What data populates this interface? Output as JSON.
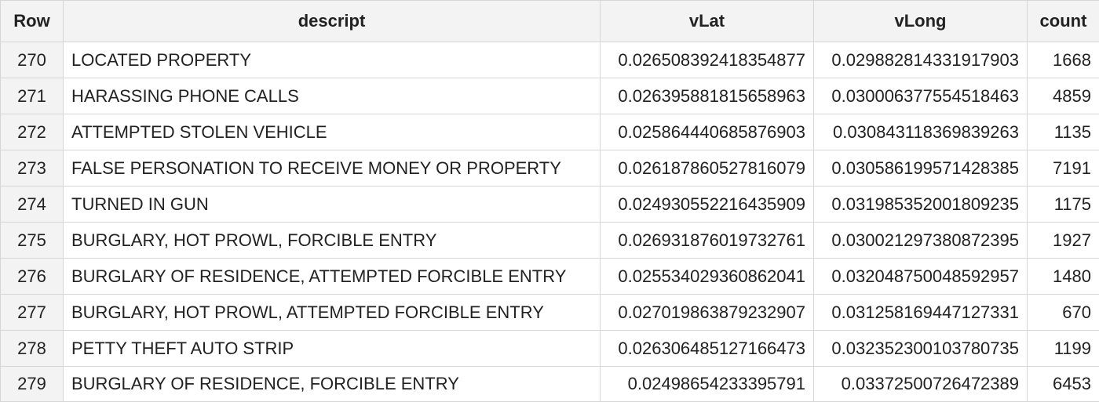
{
  "table": {
    "headers": [
      "Row",
      "descript",
      "vLat",
      "vLong",
      "count"
    ],
    "rows": [
      {
        "row": "270",
        "descript": "LOCATED PROPERTY",
        "vLat": "0.026508392418354877",
        "vLong": "0.029882814331917903",
        "count": "1668"
      },
      {
        "row": "271",
        "descript": "HARASSING PHONE CALLS",
        "vLat": "0.026395881815658963",
        "vLong": "0.030006377554518463",
        "count": "4859"
      },
      {
        "row": "272",
        "descript": "ATTEMPTED STOLEN VEHICLE",
        "vLat": "0.025864440685876903",
        "vLong": "0.030843118369839263",
        "count": "1135"
      },
      {
        "row": "273",
        "descript": "FALSE PERSONATION TO RECEIVE MONEY OR PROPERTY",
        "vLat": "0.026187860527816079",
        "vLong": "0.030586199571428385",
        "count": "7191"
      },
      {
        "row": "274",
        "descript": "TURNED IN GUN",
        "vLat": "0.024930552216435909",
        "vLong": "0.031985352001809235",
        "count": "1175"
      },
      {
        "row": "275",
        "descript": "BURGLARY, HOT PROWL, FORCIBLE ENTRY",
        "vLat": "0.026931876019732761",
        "vLong": "0.030021297380872395",
        "count": "1927"
      },
      {
        "row": "276",
        "descript": "BURGLARY OF RESIDENCE, ATTEMPTED FORCIBLE ENTRY",
        "vLat": "0.025534029360862041",
        "vLong": "0.032048750048592957",
        "count": "1480"
      },
      {
        "row": "277",
        "descript": "BURGLARY, HOT PROWL, ATTEMPTED FORCIBLE ENTRY",
        "vLat": "0.027019863879232907",
        "vLong": "0.031258169447127331",
        "count": "670"
      },
      {
        "row": "278",
        "descript": "PETTY THEFT AUTO STRIP",
        "vLat": "0.026306485127166473",
        "vLong": "0.032352300103780735",
        "count": "1199"
      },
      {
        "row": "279",
        "descript": "BURGLARY OF RESIDENCE, FORCIBLE ENTRY",
        "vLat": "0.02498654233395791",
        "vLong": "0.03372500726472389",
        "count": "6453"
      }
    ]
  }
}
